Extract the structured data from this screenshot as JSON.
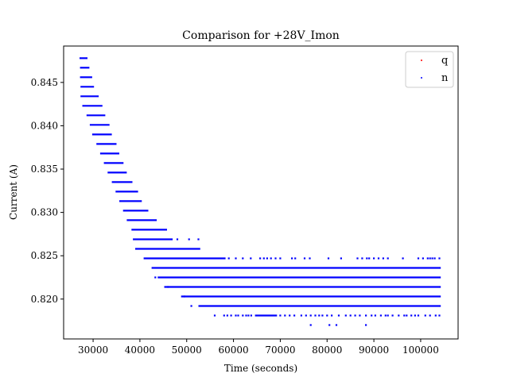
{
  "chart_data": {
    "type": "scatter",
    "title": "Comparison for +28V_Imon",
    "xlabel": "Time (seconds)",
    "ylabel": "Current (A)",
    "xlim": [
      23700,
      108000
    ],
    "ylim": [
      0.8154,
      0.8492
    ],
    "xticks": [
      30000,
      40000,
      50000,
      60000,
      70000,
      80000,
      90000,
      100000
    ],
    "yticks": [
      0.82,
      0.825,
      0.83,
      0.835,
      0.84,
      0.845
    ],
    "xtick_labels": [
      "30000",
      "40000",
      "50000",
      "60000",
      "70000",
      "80000",
      "90000",
      "100000"
    ],
    "ytick_labels": [
      "0.820",
      "0.825",
      "0.830",
      "0.835",
      "0.840",
      "0.845"
    ],
    "grid": false,
    "legend_position": "top-right",
    "series": [
      {
        "name": "q",
        "color": "#ff0000",
        "marker": "point"
      },
      {
        "name": "n",
        "color": "#0000ff",
        "marker": "point"
      }
    ],
    "segments": [
      {
        "y": 0.8478,
        "x_start": 27100,
        "x_end": 28800
      },
      {
        "y": 0.8467,
        "x_start": 27200,
        "x_end": 29200
      },
      {
        "y": 0.8456,
        "x_start": 27200,
        "x_end": 29800
      },
      {
        "y": 0.8445,
        "x_start": 27300,
        "x_end": 30200
      },
      {
        "y": 0.8434,
        "x_start": 27300,
        "x_end": 31200
      },
      {
        "y": 0.8423,
        "x_start": 27700,
        "x_end": 32000
      },
      {
        "y": 0.8412,
        "x_start": 28600,
        "x_end": 32600
      },
      {
        "y": 0.8401,
        "x_start": 29300,
        "x_end": 33500
      },
      {
        "y": 0.839,
        "x_start": 29800,
        "x_end": 34000
      },
      {
        "y": 0.8379,
        "x_start": 30700,
        "x_end": 35000
      },
      {
        "y": 0.8368,
        "x_start": 31500,
        "x_end": 35600
      },
      {
        "y": 0.8357,
        "x_start": 32300,
        "x_end": 36500
      },
      {
        "y": 0.8346,
        "x_start": 33100,
        "x_end": 37200
      },
      {
        "y": 0.8335,
        "x_start": 34000,
        "x_end": 38400
      },
      {
        "y": 0.8324,
        "x_start": 34800,
        "x_end": 39600
      },
      {
        "y": 0.8313,
        "x_start": 35600,
        "x_end": 40400
      },
      {
        "y": 0.8302,
        "x_start": 36400,
        "x_end": 41800
      },
      {
        "y": 0.8291,
        "x_start": 37200,
        "x_end": 43600
      },
      {
        "y": 0.828,
        "x_start": 38200,
        "x_end": 45800
      },
      {
        "y": 0.8269,
        "x_start": 38500,
        "x_end": 47000
      },
      {
        "y": 0.8258,
        "x_start": 39000,
        "x_end": 52900
      },
      {
        "y": 0.8247,
        "x_start": 40800,
        "x_end": 58300
      },
      {
        "y": 0.8236,
        "x_start": 42500,
        "x_end": 104300
      },
      {
        "y": 0.8225,
        "x_start": 43800,
        "x_end": 104300
      },
      {
        "y": 0.8214,
        "x_start": 45200,
        "x_end": 104300
      },
      {
        "y": 0.8203,
        "x_start": 48800,
        "x_end": 104300
      },
      {
        "y": 0.8192,
        "x_start": 52500,
        "x_end": 104300
      },
      {
        "y": 0.8181,
        "x_start": 64600,
        "x_end": 69300
      }
    ],
    "scatter_points": [
      {
        "y": 0.8269,
        "x": [
          48000,
          50500,
          52500
        ]
      },
      {
        "y": 0.8247,
        "x": [
          59000,
          60500,
          62000,
          63700,
          65700,
          66500,
          67200,
          68000,
          69000,
          70000,
          72500,
          73200,
          75200,
          76300,
          80300,
          83000,
          86500,
          87500,
          88500,
          89000,
          90000,
          91000,
          92000,
          93000,
          96200,
          99500,
          100500,
          101500,
          102000,
          102500,
          103000,
          104000
        ]
      },
      {
        "y": 0.8225,
        "x": [
          43300
        ]
      },
      {
        "y": 0.8214,
        "x": [
          46000
        ]
      },
      {
        "y": 0.8203,
        "x": [
          49500
        ]
      },
      {
        "y": 0.8192,
        "x": [
          51000
        ]
      },
      {
        "y": 0.8181,
        "x": [
          56000,
          58000,
          58700,
          59500,
          60500,
          61000,
          62000,
          62700,
          63200,
          63800,
          70000,
          71000,
          72000,
          73000,
          74500,
          75500,
          76500,
          77500,
          78300,
          79000,
          80000,
          81000,
          82500,
          84000,
          85000,
          86000,
          87000,
          88300,
          89500,
          90300,
          91500,
          92500,
          93000,
          94000,
          95300,
          96500,
          97000,
          98000,
          98800,
          99500,
          101000,
          102000,
          103200,
          104000
        ]
      },
      {
        "y": 0.817,
        "x": [
          76500,
          80500,
          82000,
          88300
        ]
      }
    ]
  }
}
